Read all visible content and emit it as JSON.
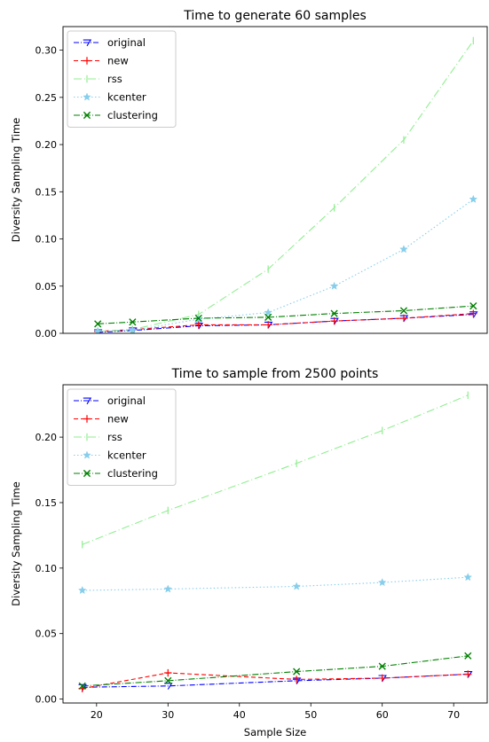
{
  "chart_data": [
    {
      "type": "line",
      "title": "Time to generate 60 samples",
      "xlabel": "",
      "ylabel": "Diversity Sampling Time",
      "xlim": [
        13,
        74
      ],
      "ylim": [
        0,
        0.325
      ],
      "yticks": [
        "0.00",
        "0.05",
        "0.10",
        "0.15",
        "0.20",
        "0.25",
        "0.30"
      ],
      "xticks": [],
      "grid": false,
      "legend": "top-left",
      "x": [
        18,
        23,
        32.5,
        42.5,
        52,
        62,
        72
      ],
      "series": [
        {
          "name": "original",
          "color": "#0000ff",
          "dash": "6,2,1,2",
          "marker": "tri-down",
          "values": [
            0.001,
            0.003,
            0.008,
            0.009,
            0.013,
            0.016,
            0.02
          ]
        },
        {
          "name": "new",
          "color": "#ff0000",
          "dash": "5,3",
          "marker": "plus",
          "values": [
            0.002,
            0.004,
            0.009,
            0.009,
            0.013,
            0.016,
            0.021
          ]
        },
        {
          "name": "rss",
          "color": "#90ee90",
          "dash": "9,3,1,3",
          "marker": "vline",
          "values": [
            0.002,
            0.004,
            0.02,
            0.068,
            0.133,
            0.205,
            0.31
          ]
        },
        {
          "name": "kcenter",
          "color": "#87ceeb",
          "dash": "1.5,2.5",
          "marker": "star",
          "values": [
            0.002,
            0.003,
            0.015,
            0.022,
            0.05,
            0.089,
            0.142
          ]
        },
        {
          "name": "clustering",
          "color": "#008000",
          "dash": "7,2,1,2",
          "marker": "x",
          "values": [
            0.01,
            0.012,
            0.016,
            0.017,
            0.021,
            0.024,
            0.029
          ]
        }
      ]
    },
    {
      "type": "line",
      "title": "Time to sample from 2500 points",
      "xlabel": "Sample Size",
      "ylabel": "Diversity Sampling Time",
      "xlim": [
        15.3,
        74.7
      ],
      "ylim": [
        -0.003,
        0.24
      ],
      "yticks": [
        "0.00",
        "0.05",
        "0.10",
        "0.15",
        "0.20"
      ],
      "xticks": [
        "20",
        "30",
        "40",
        "50",
        "60",
        "70"
      ],
      "grid": false,
      "legend": "top-left",
      "x": [
        18,
        30,
        48,
        60,
        72
      ],
      "series": [
        {
          "name": "original",
          "color": "#0000ff",
          "dash": "6,2,1,2",
          "marker": "tri-down",
          "values": [
            0.009,
            0.01,
            0.014,
            0.016,
            0.019
          ]
        },
        {
          "name": "new",
          "color": "#ff0000",
          "dash": "5,3",
          "marker": "plus",
          "values": [
            0.008,
            0.02,
            0.015,
            0.016,
            0.019
          ]
        },
        {
          "name": "rss",
          "color": "#90ee90",
          "dash": "9,3,1,3",
          "marker": "vline",
          "values": [
            0.118,
            0.144,
            0.18,
            0.205,
            0.232
          ]
        },
        {
          "name": "kcenter",
          "color": "#87ceeb",
          "dash": "1.5,2.5",
          "marker": "star",
          "values": [
            0.083,
            0.084,
            0.086,
            0.089,
            0.093
          ]
        },
        {
          "name": "clustering",
          "color": "#008000",
          "dash": "7,2,1,2",
          "marker": "x",
          "values": [
            0.01,
            0.014,
            0.021,
            0.025,
            0.033
          ]
        }
      ]
    }
  ]
}
